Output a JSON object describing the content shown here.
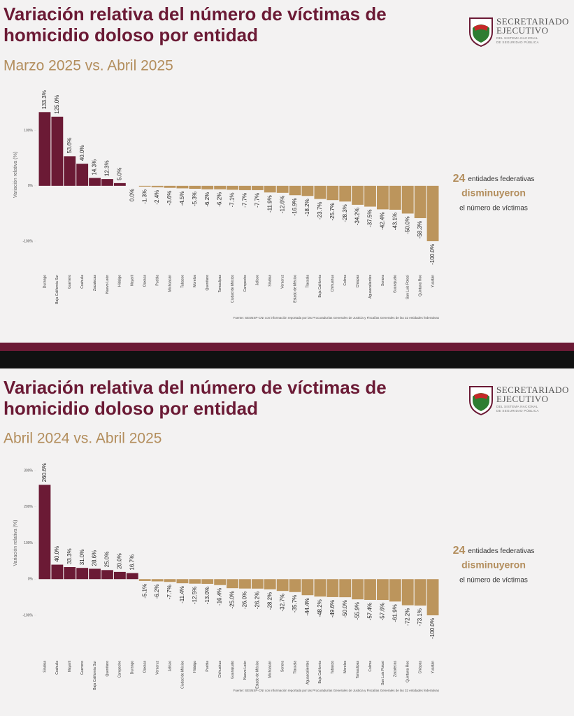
{
  "chart_data": [
    {
      "type": "bar",
      "title": [
        "Variación relativa del número de víctimas de",
        "homicidio doloso por entidad"
      ],
      "subtitle": "Marzo 2025 vs. Abril 2025",
      "logo_text": [
        "SECRETARIADO",
        "EJECUTIVO",
        "DEL SISTEMA NACIONAL",
        "DE SEGURIDAD PÚBLICA"
      ],
      "y_label": "Variación relativa (%)",
      "categories": [
        "Durango",
        "Baja California Sur",
        "Guerrero",
        "Coahuila",
        "Zacatecas",
        "Nuevo León",
        "Hidalgo",
        "Nayarit",
        "Oaxaca",
        "Puebla",
        "Michoacán",
        "Tabasco",
        "Morelos",
        "Querétaro",
        "Tamaulipas",
        "Ciudad de México",
        "Campeche",
        "Jalisco",
        "Sinaloa",
        "Veracruz",
        "Estado de México",
        "Tlaxcala",
        "Baja California",
        "Chihuahua",
        "Colima",
        "Chiapas",
        "Aguascalientes",
        "Sonora",
        "Guanajuato",
        "San Luis Potosí",
        "Quintana Roo",
        "Yucatán"
      ],
      "values": [
        133.3,
        125.0,
        53.6,
        40.0,
        14.3,
        12.3,
        5.0,
        0.0,
        -1.3,
        -2.4,
        -3.6,
        -4.5,
        -5.3,
        -6.2,
        -6.2,
        -7.1,
        -7.7,
        -7.7,
        -11.9,
        -12.6,
        -16.9,
        -18.2,
        -23.7,
        -25.7,
        -28.3,
        -34.2,
        -37.5,
        -42.4,
        -43.1,
        -50.0,
        -58.3,
        -100.0
      ],
      "value_labels": [
        "133.3%",
        "125.0%",
        "53.6%",
        "40.0%",
        "14.3%",
        "12.3%",
        "5.0%",
        "0.0%",
        "-1.3%",
        "-2.4%",
        "-3.6%",
        "-4.5%",
        "-5.3%",
        "-6.2%",
        "-6.2%",
        "-7.1%",
        "-7.7%",
        "-7.7%",
        "-11.9%",
        "-12.6%",
        "-16.9%",
        "-18.2%",
        "-23.7%",
        "-25.7%",
        "-28.3%",
        "-34.2%",
        "-37.5%",
        "-42.4%",
        "-43.1%",
        "-50.0%",
        "-58.3%",
        "-100.0%"
      ],
      "color_positive": "#6b1a35",
      "color_negative": "#bc955c",
      "ylim": [
        -100,
        140
      ],
      "yticks": [
        {
          "value": 100,
          "label": "100%"
        },
        {
          "value": 0,
          "label": "0%"
        },
        {
          "value": -100,
          "label": "-100%"
        }
      ],
      "summary": [
        24,
        "entidades federativas",
        "disminuyeron",
        "el número de víctimas"
      ],
      "source": "Fuente: SESNSP-CNI con información reportada por las Procuradurías Generales de Justicia y Fiscalías Generales de las 32 entidades federativas"
    },
    {
      "type": "bar",
      "title": [
        "Variación relativa del número de víctimas de",
        "homicidio doloso por entidad"
      ],
      "subtitle": "Abril 2024 vs. Abril 2025",
      "logo_text": [
        "SECRETARIADO",
        "EJECUTIVO",
        "DEL SISTEMA NACIONAL",
        "DE SEGURIDAD PÚBLICA"
      ],
      "y_label": "Variación relativa (%)",
      "categories": [
        "Sinaloa",
        "Coahuila",
        "Nayarit",
        "Guerrero",
        "Baja California Sur",
        "Querétaro",
        "Campeche",
        "Durango",
        "Oaxaca",
        "Veracruz",
        "Jalisco",
        "Ciudad de México",
        "Hidalgo",
        "Puebla",
        "Chihuahua",
        "Guanajuato",
        "Nuevo León",
        "Estado de México",
        "Michoacán",
        "Sonora",
        "Tlaxcala",
        "Aguascalientes",
        "Baja California",
        "Tabasco",
        "Morelos",
        "Tamaulipas",
        "Colima",
        "San Luis Potosí",
        "Zacatecas",
        "Quintana Roo",
        "Chiapas",
        "Yucatán"
      ],
      "values": [
        260.6,
        40.0,
        33.3,
        31.0,
        28.6,
        25.0,
        20.0,
        16.7,
        -5.1,
        -6.2,
        -7.7,
        -11.4,
        -12.5,
        -13.0,
        -16.4,
        -25.0,
        -26.0,
        -26.2,
        -28.2,
        -32.7,
        -35.7,
        -44.4,
        -48.2,
        -49.6,
        -50.0,
        -55.9,
        -57.4,
        -57.6,
        -61.9,
        -72.2,
        -73.1,
        -100.0
      ],
      "value_labels": [
        "260.6%",
        "40.0%",
        "33.3%",
        "31.0%",
        "28.6%",
        "25.0%",
        "20.0%",
        "16.7%",
        "-5.1%",
        "-6.2%",
        "-7.7%",
        "-11.4%",
        "-12.5%",
        "-13.0%",
        "-16.4%",
        "-25.0%",
        "-26.0%",
        "-26.2%",
        "-28.2%",
        "-32.7%",
        "-35.7%",
        "-44.4%",
        "-48.2%",
        "-49.6%",
        "-50.0%",
        "-55.9%",
        "-57.4%",
        "-57.6%",
        "-61.9%",
        "-72.2%",
        "-73.1%",
        "-100.0%"
      ],
      "color_positive": "#6b1a35",
      "color_negative": "#bc955c",
      "ylim": [
        -100,
        300
      ],
      "yticks": [
        {
          "value": 300,
          "label": "300%"
        },
        {
          "value": 200,
          "label": "200%"
        },
        {
          "value": 100,
          "label": "100%"
        },
        {
          "value": 0,
          "label": "0%"
        },
        {
          "value": -100,
          "label": "-100%"
        }
      ],
      "summary": [
        24,
        "entidades federativas",
        "disminuyeron",
        "el número de víctimas"
      ],
      "source": "Fuente: SESNSP-CNI con información reportada por las Procuradurías Generales de Justicia y Fiscalías Generales de las 32 entidades federativas"
    }
  ]
}
